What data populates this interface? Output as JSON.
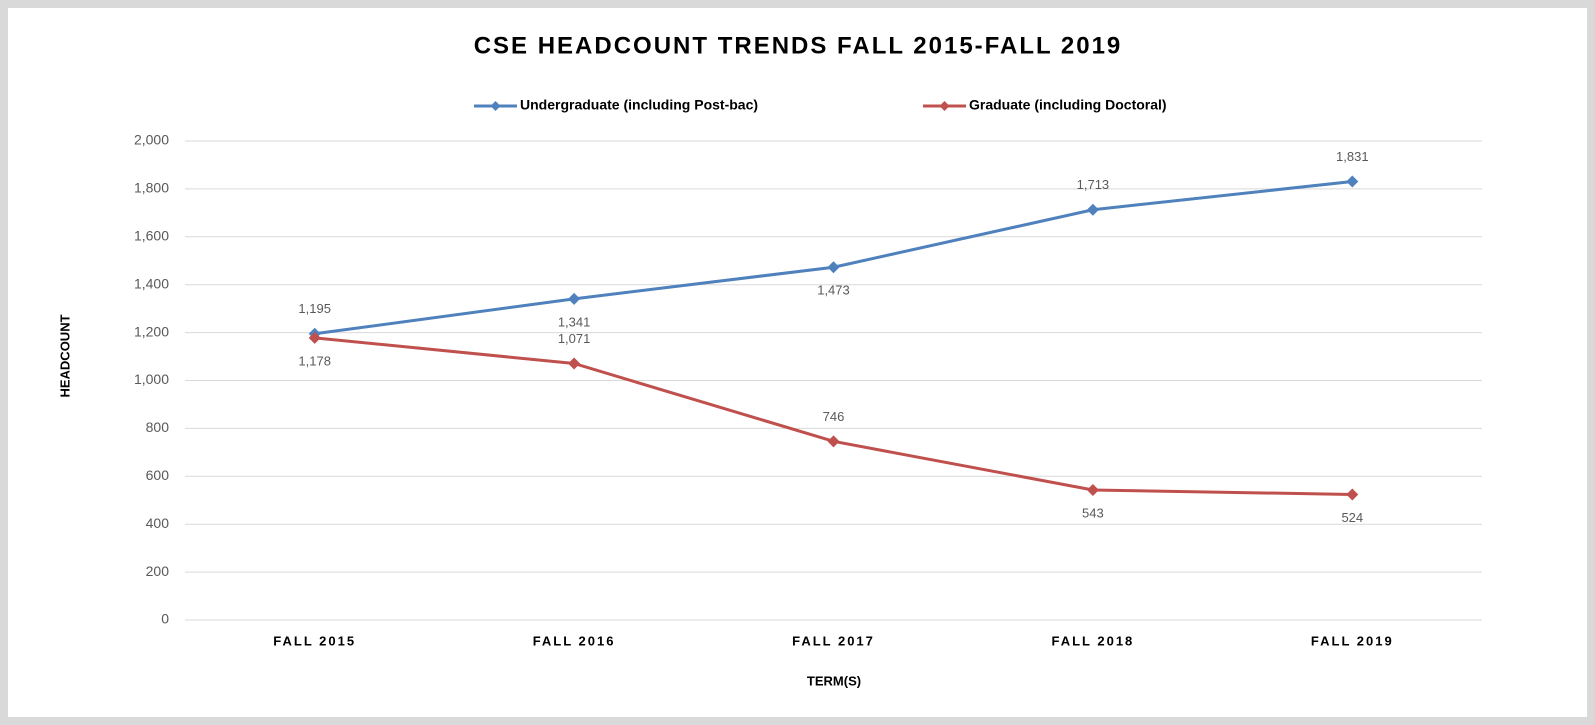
{
  "chart_data": {
    "type": "line",
    "title": "CSE HEADCOUNT TRENDS FALL 2015-FALL 2019",
    "xlabel": "TERM(S)",
    "ylabel": "HEADCOUNT",
    "categories": [
      "FALL 2015",
      "FALL 2016",
      "FALL 2017",
      "FALL 2018",
      "FALL 2019"
    ],
    "series": [
      {
        "name": "Undergraduate (including Post-bac)",
        "color": "#4f81bd",
        "values": [
          1195,
          1341,
          1473,
          1713,
          1831
        ],
        "value_labels": [
          "1,195",
          "1,341",
          "1,473",
          "1,713",
          "1,831"
        ]
      },
      {
        "name": "Graduate (including Doctoral)",
        "color": "#c0504d",
        "values": [
          1178,
          1071,
          746,
          543,
          524
        ],
        "value_labels": [
          "1,178",
          "1,071",
          "746",
          "543",
          "524"
        ]
      }
    ],
    "ylim": [
      0,
      2000
    ],
    "yticks": [
      0,
      200,
      400,
      600,
      800,
      {
        "value": 1000,
        "label": "1,000"
      },
      {
        "value": 1200,
        "label": "1,200"
      },
      {
        "value": 1400,
        "label": "1,400"
      },
      {
        "value": 1600,
        "label": "1,600"
      },
      {
        "value": 1800,
        "label": "1,800"
      },
      {
        "value": 2000,
        "label": "2,000"
      }
    ],
    "grid": true,
    "legend": "top"
  }
}
